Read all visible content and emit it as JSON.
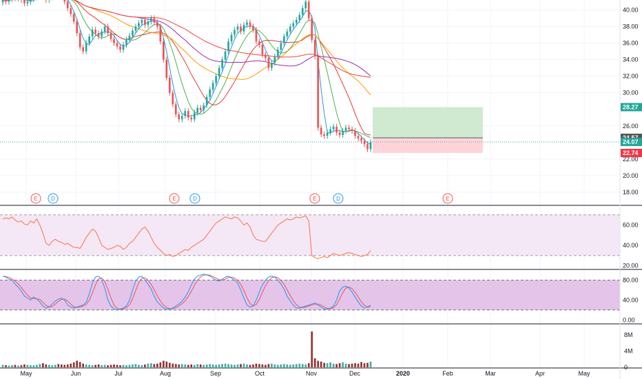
{
  "colors": {
    "up": "#26a69a",
    "down": "#ef5350",
    "ma10": "#2196f3",
    "ma20": "#4caf50",
    "ma50": "#e53935",
    "ma100": "#ff9800",
    "ma200": "#9c27b0",
    "ma300": "#f44336",
    "rsi": "#ff7043",
    "stoch_k": "#2196f3",
    "stoch_d": "#ef5350",
    "profit_zone": "#c8e6c9",
    "loss_zone": "#ffcdd2",
    "target_tag": "#26a69a",
    "stop_tag": "#f23645",
    "price_tag": "#26a69a",
    "entry_tag": "#555555"
  },
  "price_axis": {
    "ticks": [
      "40.00",
      "38.00",
      "36.00",
      "34.00",
      "32.00",
      "30.00",
      "26.00",
      "22.00",
      "20.00",
      "18.00"
    ],
    "tick_values": [
      40,
      38,
      36,
      34,
      32,
      30,
      26,
      22,
      20,
      18
    ],
    "tags": [
      {
        "label": "28.27",
        "value": 28.27,
        "kind": "target"
      },
      {
        "label": "24.57",
        "value": 24.57,
        "kind": "entry"
      },
      {
        "label": "24.07",
        "value": 24.07,
        "kind": "price"
      },
      {
        "label": "22.74",
        "value": 22.74,
        "kind": "stop"
      }
    ]
  },
  "rsi_axis": {
    "ticks": [
      "60.00",
      "40.00",
      "20.00"
    ],
    "tick_values": [
      60,
      40,
      20
    ],
    "upper": 70,
    "lower": 30
  },
  "stoch_axis": {
    "ticks": [
      "80.00",
      "40.00",
      "0.00"
    ],
    "tick_values": [
      80,
      40,
      0
    ],
    "upper": 80,
    "lower": 20
  },
  "volume_axis": {
    "ticks": [
      "8M",
      "4M",
      "0"
    ],
    "tick_values": [
      8,
      4,
      0
    ]
  },
  "time_axis": [
    "May",
    "Jun",
    "Jul",
    "Aug",
    "Sep",
    "Oct",
    "Nov",
    "Dec",
    "2020",
    "Feb",
    "Mar",
    "Apr",
    "May"
  ],
  "events": [
    {
      "label": "E",
      "kind": "earnings",
      "month_index": 0
    },
    {
      "label": "D",
      "kind": "dividend",
      "month_index": 0.45
    },
    {
      "label": "E",
      "kind": "earnings",
      "month_index": 3.2
    },
    {
      "label": "D",
      "kind": "dividend",
      "month_index": 3.6
    },
    {
      "label": "E",
      "kind": "earnings",
      "month_index": 6.15
    },
    {
      "label": "D",
      "kind": "dividend",
      "month_index": 6.55
    },
    {
      "label": "E",
      "kind": "earnings",
      "month_index": 9.0
    }
  ],
  "chart_data": {
    "type": "candlestick",
    "current_price": 24.07,
    "position": {
      "entry": 24.57,
      "target": 28.27,
      "stop": 22.74
    },
    "closes": [
      41.2,
      41.0,
      41.3,
      41.5,
      41.4,
      41.6,
      41.2,
      40.8,
      41.0,
      41.3,
      41.5,
      41.8,
      42.0,
      41.6,
      41.2,
      41.5,
      42.0,
      42.3,
      42.1,
      41.8,
      41.0,
      40.2,
      39.5,
      38.6,
      37.2,
      35.5,
      35.0,
      36.0,
      36.8,
      37.6,
      37.2,
      36.8,
      37.4,
      38.0,
      37.2,
      36.5,
      36.0,
      35.6,
      35.2,
      35.8,
      36.4,
      36.9,
      37.5,
      38.0,
      38.4,
      38.8,
      38.2,
      38.6,
      39.0,
      38.5,
      38.0,
      36.2,
      34.0,
      31.8,
      30.0,
      28.6,
      27.4,
      26.8,
      27.2,
      27.8,
      27.0,
      26.8,
      27.6,
      28.2,
      27.9,
      28.5,
      29.5,
      30.4,
      31.2,
      32.0,
      33.0,
      34.0,
      35.0,
      36.2,
      37.0,
      37.6,
      38.0,
      37.4,
      38.2,
      38.5,
      38.0,
      37.6,
      36.2,
      35.8,
      34.6,
      34.2,
      33.0,
      33.6,
      34.4,
      35.2,
      36.0,
      36.8,
      37.4,
      38.0,
      38.4,
      38.8,
      39.4,
      40.2,
      41.0,
      39.0,
      36.4,
      34.4,
      25.8,
      25.0,
      24.8,
      25.2,
      25.6,
      25.9,
      25.2,
      24.9,
      25.4,
      25.8,
      25.6,
      25.4,
      24.8,
      24.5,
      24.2,
      23.8,
      23.2,
      24.07
    ],
    "rsi": [
      66,
      67,
      66,
      68,
      65,
      63,
      64,
      61,
      60,
      64,
      62,
      66,
      60,
      52,
      42,
      40,
      44,
      46,
      44,
      43,
      41,
      42,
      40,
      38,
      38,
      37,
      42,
      48,
      52,
      56,
      54,
      48,
      40,
      38,
      36,
      37,
      38,
      40,
      39,
      36,
      38,
      42,
      44,
      48,
      52,
      56,
      58,
      54,
      48,
      42,
      38,
      35,
      32,
      30,
      31,
      29,
      30,
      32,
      34,
      36,
      35,
      38,
      40,
      42,
      44,
      46,
      50,
      54,
      58,
      62,
      64,
      66,
      68,
      67,
      66,
      68,
      67,
      64,
      60,
      62,
      58,
      50,
      46,
      45,
      44,
      44,
      48,
      52,
      56,
      60,
      62,
      64,
      66,
      65,
      66,
      68,
      67,
      68,
      69,
      64,
      30,
      28,
      27,
      28,
      29,
      28,
      30,
      32,
      31,
      30,
      31,
      32,
      33,
      32,
      31,
      30,
      29,
      30,
      31,
      35
    ],
    "stoch_k": [
      88,
      86,
      82,
      80,
      72,
      66,
      58,
      48,
      44,
      40,
      46,
      42,
      36,
      28,
      24,
      26,
      32,
      38,
      42,
      44,
      40,
      30,
      26,
      24,
      26,
      28,
      30,
      36,
      52,
      74,
      86,
      88,
      80,
      64,
      40,
      28,
      22,
      20,
      22,
      24,
      28,
      40,
      60,
      78,
      86,
      88,
      80,
      72,
      62,
      48,
      36,
      30,
      24,
      22,
      22,
      24,
      28,
      32,
      38,
      46,
      56,
      70,
      82,
      88,
      90,
      92,
      90,
      88,
      84,
      80,
      78,
      82,
      86,
      88,
      84,
      80,
      74,
      60,
      44,
      30,
      26,
      28,
      40,
      56,
      70,
      80,
      86,
      88,
      86,
      80,
      72,
      62,
      48,
      38,
      30,
      24,
      24,
      26,
      28,
      30,
      32,
      34,
      30,
      26,
      22,
      22,
      24,
      28,
      40,
      58,
      66,
      68,
      64,
      56,
      46,
      36,
      28,
      24,
      26,
      30
    ],
    "volume": [
      0.6,
      0.5,
      0.4,
      0.5,
      0.6,
      0.4,
      0.5,
      0.7,
      0.6,
      0.5,
      0.5,
      0.6,
      0.8,
      1.0,
      0.7,
      0.6,
      0.5,
      0.6,
      0.8,
      0.7,
      0.6,
      0.7,
      0.9,
      1.2,
      1.6,
      1.3,
      0.9,
      0.7,
      0.6,
      0.5,
      0.6,
      0.7,
      0.5,
      0.6,
      0.5,
      0.6,
      0.7,
      0.6,
      0.5,
      0.6,
      0.5,
      0.6,
      0.7,
      0.8,
      0.6,
      0.5,
      0.7,
      0.9,
      1.0,
      0.8,
      0.9,
      1.2,
      1.6,
      1.4,
      1.1,
      0.9,
      0.8,
      0.7,
      0.8,
      0.7,
      0.6,
      0.7,
      0.6,
      0.8,
      0.7,
      0.6,
      0.7,
      0.8,
      0.7,
      0.6,
      0.7,
      0.8,
      0.9,
      0.8,
      0.7,
      0.6,
      0.7,
      0.8,
      0.9,
      0.7,
      0.6,
      0.7,
      0.9,
      0.8,
      0.7,
      0.6,
      0.8,
      0.9,
      0.7,
      0.6,
      0.7,
      0.8,
      0.7,
      0.6,
      0.7,
      0.8,
      0.9,
      0.8,
      0.7,
      1.0,
      8.8,
      2.2,
      1.6,
      1.4,
      1.1,
      1.0,
      1.2,
      0.9,
      0.8,
      1.0,
      1.2,
      0.9,
      0.8,
      0.9,
      1.0,
      0.9,
      1.3,
      1.0,
      1.1,
      1.4
    ]
  }
}
